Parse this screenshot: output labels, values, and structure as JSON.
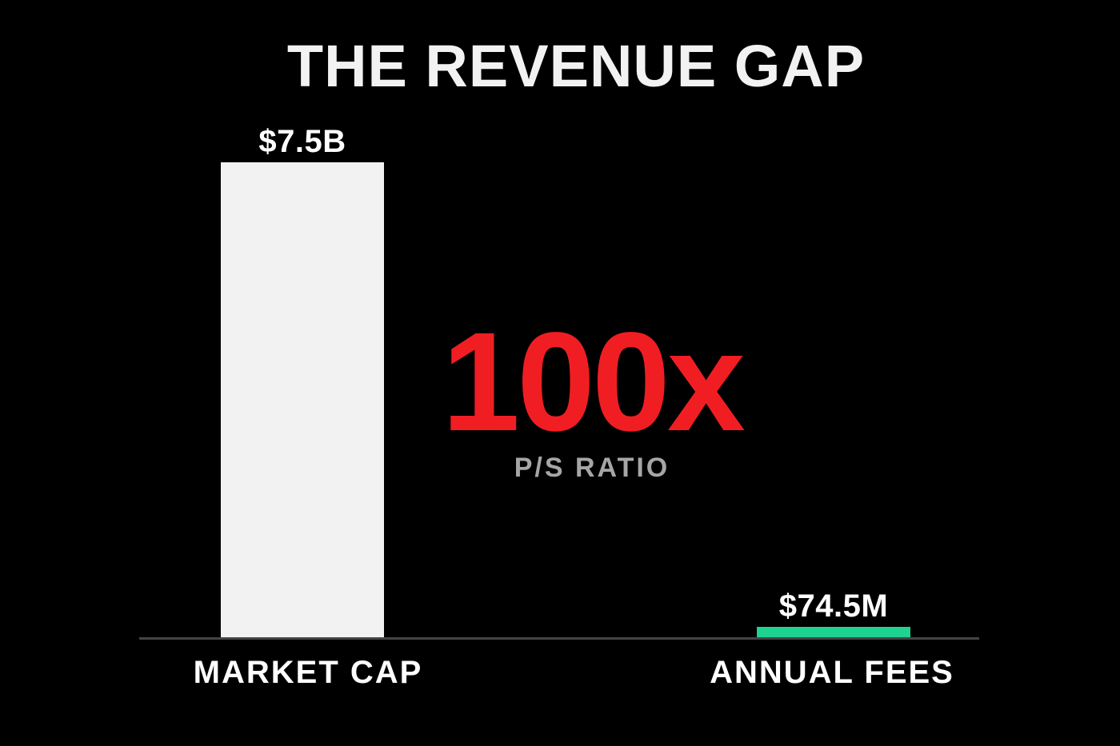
{
  "colors": {
    "background": "#000000",
    "title": "#f2f2f2",
    "text": "#ffffff",
    "market_cap_bar": "#f2f2f2",
    "annual_fees_bar": "#1ed28f",
    "ratio_accent": "#f01e23",
    "ratio_label": "#a6a6a6",
    "axis": "#444444"
  },
  "chart_data": {
    "type": "bar",
    "title": "THE REVENUE GAP",
    "categories": [
      "MARKET CAP",
      "ANNUAL FEES"
    ],
    "values": [
      7500000000,
      74500000
    ],
    "value_labels": [
      "$7.5B",
      "$74.5M"
    ],
    "ylim": [
      0,
      7500000000
    ],
    "grid": false,
    "annotation": {
      "value": "100x",
      "label": "P/S RATIO"
    }
  }
}
